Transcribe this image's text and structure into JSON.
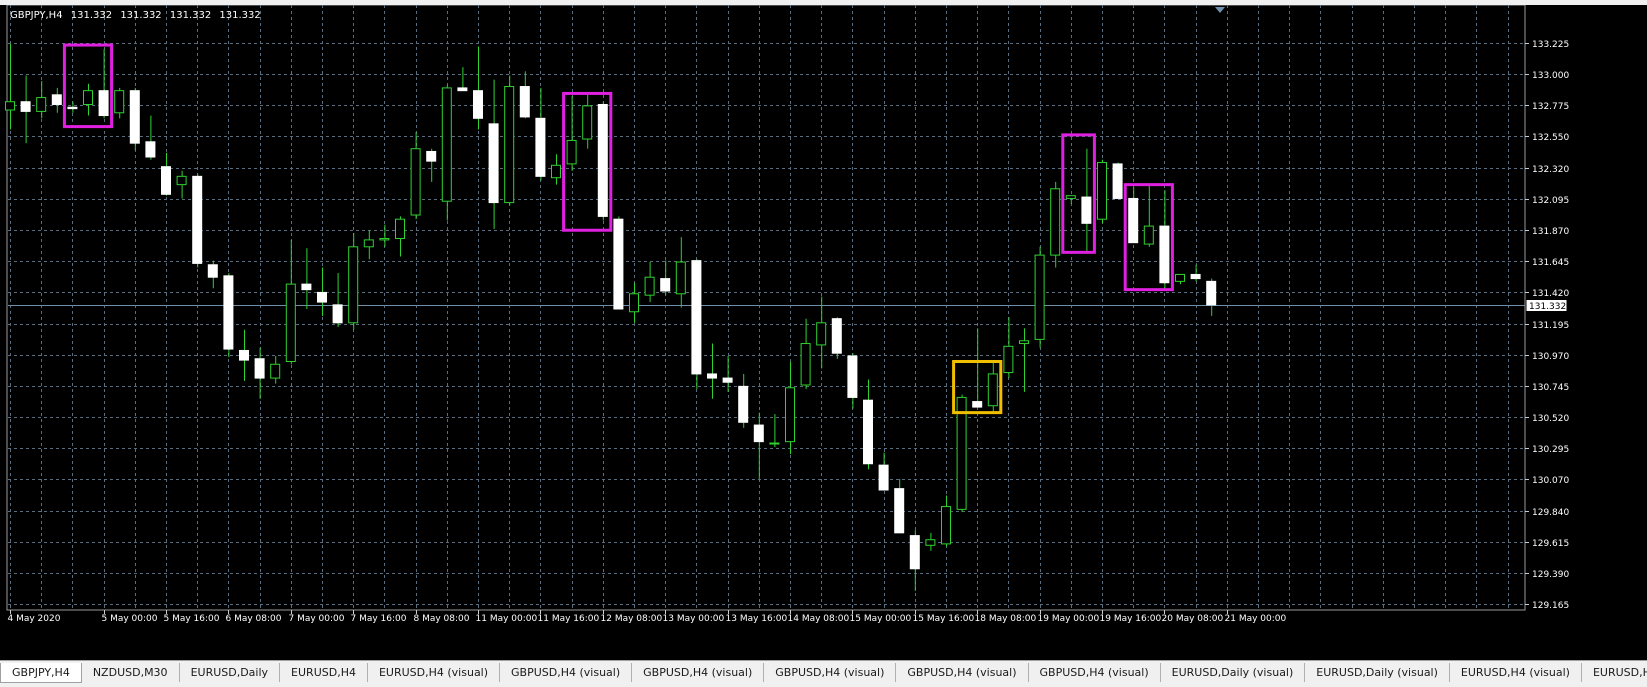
{
  "window": {
    "symbol": "GBPJPY,H4",
    "ohlc": [
      "131.332",
      "131.332",
      "131.332",
      "131.332"
    ]
  },
  "colors": {
    "background": "#000000",
    "grid": "#5a6e7f",
    "bull": "#2fd12f",
    "bear": "#ffffff",
    "axis_text": "#ffffff",
    "current_price_line": "#6f8fa8",
    "box_magenta": "#e020e0",
    "box_yellow": "#f0c000"
  },
  "chart_data": {
    "type": "candlestick",
    "title": "GBPJPY,H4",
    "xlabel": "",
    "ylabel": "",
    "ylim": [
      129.165,
      133.225
    ],
    "yticks": [
      "133.225",
      "133.000",
      "132.775",
      "132.550",
      "132.320",
      "132.095",
      "131.870",
      "131.645",
      "131.420",
      "131.195",
      "130.970",
      "130.745",
      "130.520",
      "130.295",
      "130.070",
      "129.840",
      "129.615",
      "129.390",
      "129.165"
    ],
    "xticks": [
      {
        "bar": 0,
        "label": "4 May 2020"
      },
      {
        "bar": 6,
        "label": "5 May 00:00"
      },
      {
        "bar": 10,
        "label": "5 May 16:00"
      },
      {
        "bar": 14,
        "label": "6 May 08:00"
      },
      {
        "bar": 18,
        "label": "7 May 00:00"
      },
      {
        "bar": 22,
        "label": "7 May 16:00"
      },
      {
        "bar": 26,
        "label": "8 May 08:00"
      },
      {
        "bar": 30,
        "label": "11 May 00:00"
      },
      {
        "bar": 34,
        "label": "11 May 16:00"
      },
      {
        "bar": 38,
        "label": "12 May 08:00"
      },
      {
        "bar": 42,
        "label": "13 May 00:00"
      },
      {
        "bar": 46,
        "label": "13 May 16:00"
      },
      {
        "bar": 50,
        "label": "14 May 08:00"
      },
      {
        "bar": 54,
        "label": "15 May 00:00"
      },
      {
        "bar": 58,
        "label": "15 May 16:00"
      },
      {
        "bar": 62,
        "label": "18 May 08:00"
      },
      {
        "bar": 66,
        "label": "19 May 00:00"
      },
      {
        "bar": 70,
        "label": "19 May 16:00"
      },
      {
        "bar": 74,
        "label": "20 May 08:00"
      },
      {
        "bar": 78,
        "label": "21 May 00:00"
      }
    ],
    "current_price": 131.332,
    "current_price_label": "131.332",
    "candles": [
      {
        "o": 132.74,
        "h": 133.22,
        "l": 132.6,
        "c": 132.8
      },
      {
        "o": 132.8,
        "h": 132.99,
        "l": 132.5,
        "c": 132.73
      },
      {
        "o": 132.73,
        "h": 132.95,
        "l": 132.68,
        "c": 132.83
      },
      {
        "o": 132.85,
        "h": 132.9,
        "l": 132.72,
        "c": 132.78
      },
      {
        "o": 132.76,
        "h": 132.8,
        "l": 132.72,
        "c": 132.75
      },
      {
        "o": 132.78,
        "h": 132.93,
        "l": 132.7,
        "c": 132.88
      },
      {
        "o": 132.88,
        "h": 133.18,
        "l": 132.68,
        "c": 132.7
      },
      {
        "o": 132.72,
        "h": 132.9,
        "l": 132.68,
        "c": 132.88
      },
      {
        "o": 132.88,
        "h": 132.9,
        "l": 132.45,
        "c": 132.5
      },
      {
        "o": 132.51,
        "h": 132.7,
        "l": 132.38,
        "c": 132.4
      },
      {
        "o": 132.33,
        "h": 132.43,
        "l": 132.12,
        "c": 132.13
      },
      {
        "o": 132.2,
        "h": 132.3,
        "l": 132.1,
        "c": 132.26
      },
      {
        "o": 132.26,
        "h": 132.28,
        "l": 131.6,
        "c": 131.63
      },
      {
        "o": 131.62,
        "h": 131.65,
        "l": 131.45,
        "c": 131.53
      },
      {
        "o": 131.54,
        "h": 131.56,
        "l": 130.95,
        "c": 131.01
      },
      {
        "o": 131.0,
        "h": 131.15,
        "l": 130.78,
        "c": 130.93
      },
      {
        "o": 130.94,
        "h": 131.02,
        "l": 130.65,
        "c": 130.8
      },
      {
        "o": 130.8,
        "h": 130.96,
        "l": 130.76,
        "c": 130.9
      },
      {
        "o": 130.92,
        "h": 131.8,
        "l": 130.9,
        "c": 131.48
      },
      {
        "o": 131.48,
        "h": 131.74,
        "l": 131.3,
        "c": 131.44
      },
      {
        "o": 131.42,
        "h": 131.6,
        "l": 131.25,
        "c": 131.35
      },
      {
        "o": 131.33,
        "h": 131.56,
        "l": 131.17,
        "c": 131.2
      },
      {
        "o": 131.2,
        "h": 131.85,
        "l": 131.15,
        "c": 131.75
      },
      {
        "o": 131.75,
        "h": 131.87,
        "l": 131.66,
        "c": 131.8
      },
      {
        "o": 131.8,
        "h": 131.91,
        "l": 131.75,
        "c": 131.81
      },
      {
        "o": 131.81,
        "h": 131.97,
        "l": 131.68,
        "c": 131.95
      },
      {
        "o": 131.98,
        "h": 132.58,
        "l": 131.95,
        "c": 132.46
      },
      {
        "o": 132.44,
        "h": 132.46,
        "l": 132.22,
        "c": 132.37
      },
      {
        "o": 132.08,
        "h": 132.92,
        "l": 131.94,
        "c": 132.9
      },
      {
        "o": 132.9,
        "h": 133.05,
        "l": 132.88,
        "c": 132.88
      },
      {
        "o": 132.88,
        "h": 133.2,
        "l": 132.6,
        "c": 132.68
      },
      {
        "o": 132.64,
        "h": 132.96,
        "l": 131.88,
        "c": 132.07
      },
      {
        "o": 132.07,
        "h": 132.99,
        "l": 132.05,
        "c": 132.91
      },
      {
        "o": 132.91,
        "h": 133.02,
        "l": 132.68,
        "c": 132.69
      },
      {
        "o": 132.68,
        "h": 132.9,
        "l": 132.23,
        "c": 132.26
      },
      {
        "o": 132.25,
        "h": 132.42,
        "l": 132.2,
        "c": 132.34
      },
      {
        "o": 132.35,
        "h": 132.84,
        "l": 132.3,
        "c": 132.52
      },
      {
        "o": 132.53,
        "h": 132.85,
        "l": 132.46,
        "c": 132.77
      },
      {
        "o": 132.78,
        "h": 132.8,
        "l": 131.94,
        "c": 131.97
      },
      {
        "o": 131.95,
        "h": 131.97,
        "l": 131.3,
        "c": 131.3
      },
      {
        "o": 131.28,
        "h": 131.49,
        "l": 131.2,
        "c": 131.41
      },
      {
        "o": 131.4,
        "h": 131.64,
        "l": 131.35,
        "c": 131.53
      },
      {
        "o": 131.52,
        "h": 131.65,
        "l": 131.4,
        "c": 131.43
      },
      {
        "o": 131.41,
        "h": 131.82,
        "l": 131.31,
        "c": 131.64
      },
      {
        "o": 131.65,
        "h": 131.66,
        "l": 130.72,
        "c": 130.83
      },
      {
        "o": 130.83,
        "h": 131.05,
        "l": 130.65,
        "c": 130.8
      },
      {
        "o": 130.8,
        "h": 130.96,
        "l": 130.7,
        "c": 130.77
      },
      {
        "o": 130.74,
        "h": 130.83,
        "l": 130.44,
        "c": 130.48
      },
      {
        "o": 130.46,
        "h": 130.55,
        "l": 130.07,
        "c": 130.34
      },
      {
        "o": 130.33,
        "h": 130.54,
        "l": 130.3,
        "c": 130.33
      },
      {
        "o": 130.34,
        "h": 130.92,
        "l": 130.25,
        "c": 130.73
      },
      {
        "o": 130.75,
        "h": 131.23,
        "l": 130.72,
        "c": 131.05
      },
      {
        "o": 131.04,
        "h": 131.39,
        "l": 130.87,
        "c": 131.2
      },
      {
        "o": 131.23,
        "h": 131.24,
        "l": 130.94,
        "c": 130.98
      },
      {
        "o": 130.96,
        "h": 130.98,
        "l": 130.58,
        "c": 130.66
      },
      {
        "o": 130.64,
        "h": 130.79,
        "l": 130.14,
        "c": 130.18
      },
      {
        "o": 130.17,
        "h": 130.26,
        "l": 130.01,
        "c": 129.99
      },
      {
        "o": 130.0,
        "h": 130.07,
        "l": 129.68,
        "c": 129.68
      },
      {
        "o": 129.66,
        "h": 129.7,
        "l": 129.26,
        "c": 129.42
      },
      {
        "o": 129.59,
        "h": 129.68,
        "l": 129.55,
        "c": 129.63
      },
      {
        "o": 129.6,
        "h": 129.95,
        "l": 129.58,
        "c": 129.87
      },
      {
        "o": 129.85,
        "h": 130.68,
        "l": 129.83,
        "c": 130.66
      },
      {
        "o": 130.63,
        "h": 131.16,
        "l": 130.61,
        "c": 130.59
      },
      {
        "o": 130.6,
        "h": 130.91,
        "l": 130.55,
        "c": 130.83
      },
      {
        "o": 130.84,
        "h": 131.24,
        "l": 130.8,
        "c": 131.03
      },
      {
        "o": 131.05,
        "h": 131.16,
        "l": 130.7,
        "c": 131.07
      },
      {
        "o": 131.08,
        "h": 131.75,
        "l": 131.02,
        "c": 131.69
      },
      {
        "o": 131.69,
        "h": 132.22,
        "l": 131.6,
        "c": 132.17
      },
      {
        "o": 132.1,
        "h": 132.12,
        "l": 132.06,
        "c": 132.12
      },
      {
        "o": 132.11,
        "h": 132.46,
        "l": 131.7,
        "c": 131.92
      },
      {
        "o": 131.95,
        "h": 132.38,
        "l": 131.92,
        "c": 132.36
      },
      {
        "o": 132.35,
        "h": 132.36,
        "l": 132.1,
        "c": 132.1
      },
      {
        "o": 132.1,
        "h": 132.18,
        "l": 131.78,
        "c": 131.78
      },
      {
        "o": 131.77,
        "h": 132.2,
        "l": 131.75,
        "c": 131.9
      },
      {
        "o": 131.9,
        "h": 132.16,
        "l": 131.45,
        "c": 131.49
      },
      {
        "o": 131.5,
        "h": 131.55,
        "l": 131.48,
        "c": 131.55
      },
      {
        "o": 131.55,
        "h": 131.62,
        "l": 131.5,
        "c": 131.52
      },
      {
        "o": 131.5,
        "h": 131.52,
        "l": 131.25,
        "c": 131.33
      }
    ],
    "highlight_boxes": [
      {
        "from": 4,
        "to": 6,
        "low": 132.62,
        "high": 133.21,
        "color": "magenta"
      },
      {
        "from": 36,
        "to": 38,
        "low": 131.87,
        "high": 132.86,
        "color": "magenta"
      },
      {
        "from": 61,
        "to": 63,
        "low": 130.55,
        "high": 130.92,
        "color": "yellow"
      },
      {
        "from": 68,
        "to": 69,
        "low": 131.71,
        "high": 132.56,
        "color": "magenta"
      },
      {
        "from": 72,
        "to": 74,
        "low": 131.44,
        "high": 132.2,
        "color": "magenta"
      }
    ]
  },
  "tabs": [
    {
      "label": "GBPJPY,H4",
      "active": true
    },
    {
      "label": "NZDUSD,M30",
      "active": false
    },
    {
      "label": "EURUSD,Daily",
      "active": false
    },
    {
      "label": "EURUSD,H4",
      "active": false
    },
    {
      "label": "EURUSD,H4 (visual)",
      "active": false
    },
    {
      "label": "GBPUSD,H4 (visual)",
      "active": false
    },
    {
      "label": "GBPUSD,H4 (visual)",
      "active": false
    },
    {
      "label": "GBPUSD,H4 (visual)",
      "active": false
    },
    {
      "label": "GBPUSD,H4 (visual)",
      "active": false
    },
    {
      "label": "GBPUSD,H4 (visual)",
      "active": false
    },
    {
      "label": "EURUSD,Daily (visual)",
      "active": false
    },
    {
      "label": "EURUSD,Daily (visual)",
      "active": false
    },
    {
      "label": "EURUSD,H4 (visual)",
      "active": false
    },
    {
      "label": "EURUSD,H4 (visua",
      "active": false
    }
  ]
}
